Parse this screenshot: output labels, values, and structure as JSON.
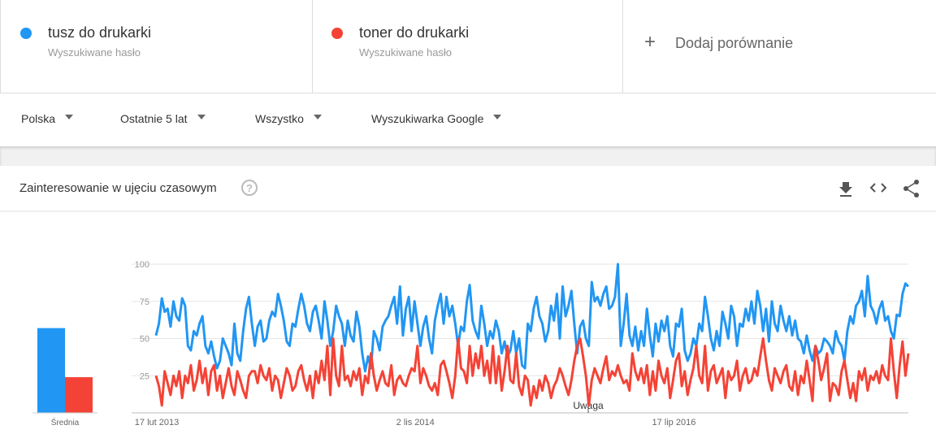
{
  "terms": [
    {
      "subtitle": "Wyszukiwane hasło"
    },
    {
      "subtitle": "Wyszukiwane hasło"
    }
  ],
  "add_compare": "Dodaj porównanie",
  "filters": [
    "Polska",
    "Ostatnie 5 lat",
    "Wszystko",
    "Wyszukiwarka Google"
  ],
  "card_title": "Zainteresowanie w ujęciu czasowym",
  "annotation": "Uwaga",
  "chart_data": [
    {
      "type": "bar",
      "xlabel": "Średnia",
      "values": [
        57,
        24
      ],
      "colors": [
        "#2196f3",
        "#f44336"
      ],
      "ylim": [
        0,
        100
      ]
    },
    {
      "type": "line",
      "ylim": [
        0,
        100
      ],
      "yticks": [
        25,
        50,
        75,
        100
      ],
      "grid": true,
      "categories": [
        "17 lut 2013",
        null,
        null,
        null,
        null,
        null,
        null,
        null,
        null,
        null,
        null,
        null,
        null,
        null,
        null,
        null,
        null,
        null,
        null,
        null,
        null,
        null,
        null,
        null,
        null,
        null,
        null,
        null,
        null,
        null,
        null,
        null,
        null,
        null,
        null,
        null,
        null,
        null,
        null,
        null,
        null,
        null,
        null,
        null,
        null,
        null,
        null,
        null,
        null,
        null,
        null,
        null,
        null,
        null,
        null,
        null,
        null,
        null,
        null,
        null,
        null,
        null,
        null,
        null,
        null,
        null,
        null,
        null,
        null,
        null,
        null,
        null,
        null,
        null,
        null,
        null,
        null,
        null,
        null,
        null,
        null,
        null,
        null,
        null,
        null,
        null,
        null,
        null,
        null,
        "2 lis 2014",
        null,
        null,
        null,
        null,
        null,
        null,
        null,
        null,
        null,
        null,
        null,
        null,
        null,
        null,
        null,
        null,
        null,
        null,
        null,
        null,
        null,
        null,
        null,
        null,
        null,
        null,
        null,
        null,
        null,
        null,
        null,
        null,
        null,
        null,
        null,
        null,
        null,
        null,
        null,
        null,
        null,
        null,
        null,
        null,
        null,
        null,
        null,
        null,
        null,
        null,
        null,
        null,
        null,
        null,
        null,
        null,
        null,
        null,
        null,
        null,
        null,
        null,
        null,
        null,
        null,
        null,
        null,
        null,
        null,
        null,
        null,
        null,
        null,
        null,
        null,
        null,
        null,
        null,
        null,
        null,
        null,
        null,
        null,
        null,
        null,
        null,
        null,
        null,
        "17 lip 2016",
        null,
        null,
        null,
        null,
        null,
        null,
        null,
        null,
        null,
        null,
        null,
        null,
        null,
        null,
        null,
        null,
        null,
        null,
        null,
        null,
        null,
        null,
        null,
        null,
        null,
        null,
        null,
        null,
        null,
        null,
        null,
        null,
        null,
        null,
        null,
        null,
        null,
        null,
        null,
        null,
        null,
        null,
        null,
        null,
        null,
        null,
        null,
        null,
        null,
        null,
        null,
        null,
        null,
        null,
        null,
        null,
        null,
        null,
        null,
        null,
        null,
        null,
        null,
        null,
        null,
        null,
        null,
        null,
        null,
        null,
        null,
        null,
        null,
        null,
        null,
        null,
        null,
        null,
        null,
        null,
        null
      ],
      "series": [
        {
          "name": "tusz do drukarki",
          "color": "#2196f3",
          "values": [
            52,
            60,
            77,
            68,
            70,
            58,
            75,
            65,
            62,
            77,
            72,
            45,
            42,
            55,
            52,
            60,
            65,
            45,
            40,
            48,
            38,
            30,
            35,
            50,
            45,
            40,
            32,
            60,
            40,
            35,
            55,
            70,
            78,
            60,
            45,
            58,
            62,
            48,
            50,
            62,
            68,
            65,
            80,
            72,
            62,
            48,
            45,
            60,
            58,
            70,
            80,
            72,
            60,
            55,
            68,
            72,
            62,
            50,
            75,
            62,
            45,
            55,
            72,
            65,
            60,
            45,
            62,
            52,
            48,
            68,
            58,
            40,
            28,
            38,
            30,
            55,
            50,
            42,
            58,
            62,
            65,
            72,
            78,
            60,
            85,
            52,
            70,
            78,
            55,
            75,
            60,
            45,
            58,
            65,
            50,
            40,
            62,
            72,
            80,
            60,
            78,
            65,
            72,
            60,
            45,
            58,
            55,
            75,
            86,
            62,
            55,
            50,
            72,
            60,
            45,
            55,
            50,
            62,
            55,
            40,
            48,
            38,
            42,
            55,
            40,
            50,
            32,
            30,
            60,
            55,
            70,
            78,
            65,
            60,
            48,
            55,
            72,
            62,
            80,
            50,
            85,
            65,
            72,
            82,
            60,
            40,
            58,
            62,
            50,
            45,
            88,
            75,
            78,
            72,
            80,
            85,
            70,
            72,
            78,
            100,
            45,
            60,
            80,
            52,
            45,
            58,
            42,
            55,
            45,
            70,
            52,
            38,
            60,
            48,
            62,
            55,
            65,
            45,
            38,
            60,
            58,
            70,
            42,
            35,
            40,
            50,
            45,
            60,
            55,
            78,
            65,
            50,
            42,
            55,
            45,
            68,
            60,
            50,
            72,
            65,
            45,
            60,
            58,
            70,
            62,
            75,
            60,
            82,
            72,
            55,
            70,
            48,
            75,
            60,
            55,
            72,
            62,
            55,
            65,
            52,
            62,
            50,
            48,
            40,
            52,
            42,
            35,
            45,
            40,
            42,
            50,
            48,
            45,
            40,
            55,
            48,
            45,
            35,
            55,
            65,
            60,
            72,
            75,
            82,
            65,
            92,
            72,
            68,
            60,
            70,
            75,
            62,
            65,
            55,
            50,
            66,
            65,
            80,
            87,
            85
          ]
        },
        {
          "name": "toner do drukarki",
          "color": "#f44336",
          "values": [
            25,
            18,
            5,
            28,
            20,
            12,
            25,
            18,
            28,
            10,
            25,
            20,
            32,
            15,
            22,
            35,
            20,
            30,
            12,
            28,
            32,
            15,
            25,
            10,
            20,
            30,
            18,
            12,
            28,
            22,
            15,
            10,
            25,
            28,
            28,
            20,
            32,
            25,
            22,
            30,
            15,
            25,
            22,
            10,
            20,
            30,
            25,
            15,
            18,
            28,
            32,
            22,
            15,
            25,
            10,
            28,
            20,
            35,
            22,
            45,
            12,
            50,
            25,
            18,
            45,
            22,
            25,
            18,
            28,
            22,
            30,
            12,
            25,
            20,
            40,
            25,
            15,
            22,
            28,
            20,
            18,
            32,
            12,
            22,
            25,
            20,
            18,
            25,
            30,
            28,
            45,
            20,
            30,
            25,
            18,
            15,
            20,
            12,
            32,
            35,
            28,
            20,
            10,
            25,
            50,
            30,
            28,
            20,
            45,
            25,
            40,
            30,
            45,
            25,
            35,
            20,
            45,
            20,
            38,
            15,
            28,
            45,
            22,
            20,
            40,
            18,
            12,
            25,
            22,
            5,
            18,
            10,
            22,
            15,
            25,
            20,
            10,
            18,
            22,
            30,
            25,
            18,
            12,
            22,
            35,
            45,
            50,
            38,
            25,
            5,
            22,
            30,
            25,
            20,
            30,
            38,
            22,
            28,
            25,
            32,
            25,
            20,
            22,
            15,
            40,
            28,
            22,
            30,
            20,
            32,
            12,
            28,
            15,
            35,
            25,
            20,
            30,
            10,
            22,
            35,
            40,
            18,
            28,
            12,
            22,
            30,
            45,
            25,
            20,
            45,
            15,
            28,
            32,
            20,
            25,
            30,
            10,
            28,
            22,
            25,
            35,
            15,
            25,
            30,
            20,
            22,
            30,
            25,
            38,
            50,
            35,
            22,
            15,
            30,
            25,
            20,
            28,
            32,
            18,
            15,
            28,
            12,
            25,
            20,
            35,
            22,
            8,
            45,
            35,
            22,
            30,
            40,
            8,
            20,
            18,
            12,
            28,
            35,
            22,
            10,
            20,
            8,
            28,
            22,
            30,
            15,
            25,
            22,
            28,
            20,
            32,
            25,
            22,
            50,
            28,
            10,
            32,
            48,
            25,
            40
          ]
        }
      ]
    }
  ]
}
